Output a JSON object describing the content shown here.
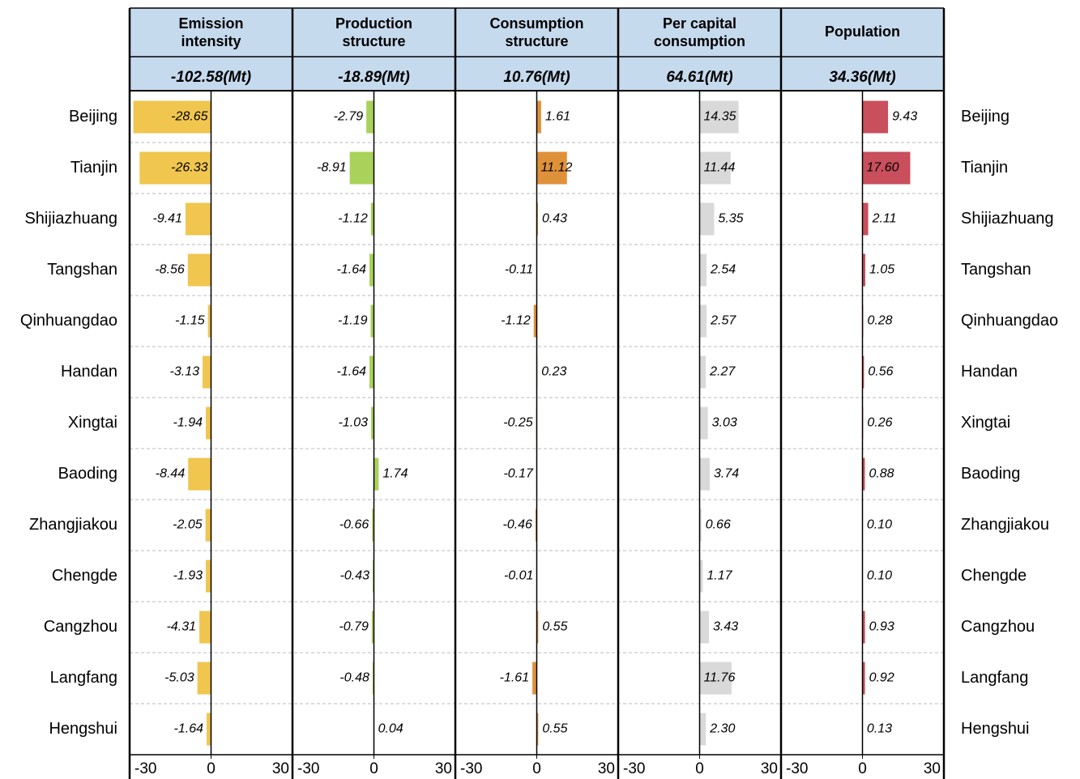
{
  "chart_data": [
    {
      "type": "hbar",
      "title": "Emission intensity",
      "total": "-102.58(Mt)",
      "color": "#f0c64f",
      "categories": [
        "Beijing",
        "Tianjin",
        "Shijiazhuang",
        "Tangshan",
        "Qinhuangdao",
        "Handan",
        "Xingtai",
        "Baoding",
        "Zhangjiakou",
        "Chengde",
        "Cangzhou",
        "Langfang",
        "Hengshui"
      ],
      "values": [
        -28.65,
        -26.33,
        -9.41,
        -8.56,
        -1.15,
        -3.13,
        -1.94,
        -8.44,
        -2.05,
        -1.93,
        -4.31,
        -5.03,
        -1.64
      ],
      "value_labels": [
        "-28.65",
        "-26.33",
        "-9.41",
        "-8.56",
        "-1.15",
        "-3.13",
        "-1.94",
        "-8.44",
        "-2.05",
        "-1.93",
        "-4.31",
        "-5.03",
        "-1.64"
      ],
      "xlim": [
        -30,
        30
      ],
      "xticks": [
        -30,
        0,
        30
      ]
    },
    {
      "type": "hbar",
      "title": "Production structure",
      "total": "-18.89(Mt)",
      "color": "#a9d25a",
      "categories": [
        "Beijing",
        "Tianjin",
        "Shijiazhuang",
        "Tangshan",
        "Qinhuangdao",
        "Handan",
        "Xingtai",
        "Baoding",
        "Zhangjiakou",
        "Chengde",
        "Cangzhou",
        "Langfang",
        "Hengshui"
      ],
      "values": [
        -2.79,
        -8.91,
        -1.12,
        -1.64,
        -1.19,
        -1.64,
        -1.03,
        1.74,
        -0.66,
        -0.43,
        -0.79,
        -0.48,
        0.04
      ],
      "value_labels": [
        "-2.79",
        "-8.91",
        "-1.12",
        "-1.64",
        "-1.19",
        "-1.64",
        "-1.03",
        "1.74",
        "-0.66",
        "-0.43",
        "-0.79",
        "-0.48",
        "0.04"
      ],
      "xlim": [
        -30,
        30
      ],
      "xticks": [
        -30,
        0,
        30
      ]
    },
    {
      "type": "hbar",
      "title": "Consumption structure",
      "total": "10.76(Mt)",
      "color": "#df913a",
      "categories": [
        "Beijing",
        "Tianjin",
        "Shijiazhuang",
        "Tangshan",
        "Qinhuangdao",
        "Handan",
        "Xingtai",
        "Baoding",
        "Zhangjiakou",
        "Chengde",
        "Cangzhou",
        "Langfang",
        "Hengshui"
      ],
      "values": [
        1.61,
        11.12,
        0.43,
        -0.11,
        -1.12,
        0.23,
        -0.25,
        -0.17,
        -0.46,
        -0.01,
        0.55,
        -1.61,
        0.55
      ],
      "value_labels": [
        "1.61",
        "11.12",
        "0.43",
        "-0.11",
        "-1.12",
        "0.23",
        "-0.25",
        "-0.17",
        "-0.46",
        "-0.01",
        "0.55",
        "-1.61",
        "0.55"
      ],
      "xlim": [
        -30,
        30
      ],
      "xticks": [
        -30,
        0,
        30
      ]
    },
    {
      "type": "hbar",
      "title": "Per capital consumption",
      "total": "64.61(Mt)",
      "color": "#d9d9d9",
      "categories": [
        "Beijing",
        "Tianjin",
        "Shijiazhuang",
        "Tangshan",
        "Qinhuangdao",
        "Handan",
        "Xingtai",
        "Baoding",
        "Zhangjiakou",
        "Chengde",
        "Cangzhou",
        "Langfang",
        "Hengshui"
      ],
      "values": [
        14.35,
        11.44,
        5.35,
        2.54,
        2.57,
        2.27,
        3.03,
        3.74,
        0.66,
        1.17,
        3.43,
        11.76,
        2.3
      ],
      "value_labels": [
        "14.35",
        "11.44",
        "5.35",
        "2.54",
        "2.57",
        "2.27",
        "3.03",
        "3.74",
        "0.66",
        "1.17",
        "3.43",
        "11.76",
        "2.30"
      ],
      "xlim": [
        -30,
        30
      ],
      "xticks": [
        -30,
        0,
        30
      ]
    },
    {
      "type": "hbar",
      "title": "Population",
      "total": "34.36(Mt)",
      "color": "#c84f5b",
      "categories": [
        "Beijing",
        "Tianjin",
        "Shijiazhuang",
        "Tangshan",
        "Qinhuangdao",
        "Handan",
        "Xingtai",
        "Baoding",
        "Zhangjiakou",
        "Chengde",
        "Cangzhou",
        "Langfang",
        "Hengshui"
      ],
      "values": [
        9.43,
        17.6,
        2.11,
        1.05,
        0.28,
        0.56,
        0.26,
        0.88,
        0.1,
        0.1,
        0.93,
        0.92,
        0.13
      ],
      "value_labels": [
        "9.43",
        "17.60",
        "2.11",
        "1.05",
        "0.28",
        "0.56",
        "0.26",
        "0.88",
        "0.10",
        "0.10",
        "0.93",
        "0.92",
        "0.13"
      ],
      "xlim": [
        -30,
        30
      ],
      "xticks": [
        -30,
        0,
        30
      ]
    }
  ]
}
